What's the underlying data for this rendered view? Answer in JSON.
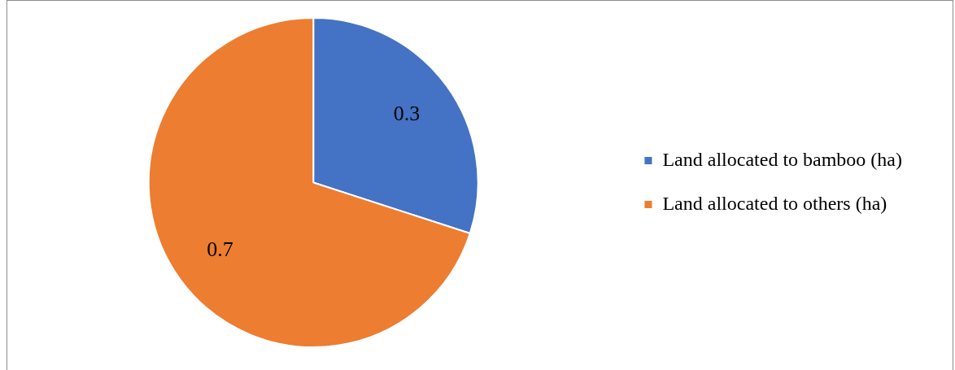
{
  "chart_data": {
    "type": "pie",
    "categories": [
      "Land allocated to bamboo (ha)",
      "Land allocated to others (ha)"
    ],
    "values": [
      0.3,
      0.7
    ],
    "colors": [
      "#4472c4",
      "#ed7d31"
    ],
    "data_labels": true,
    "legend": "right"
  }
}
